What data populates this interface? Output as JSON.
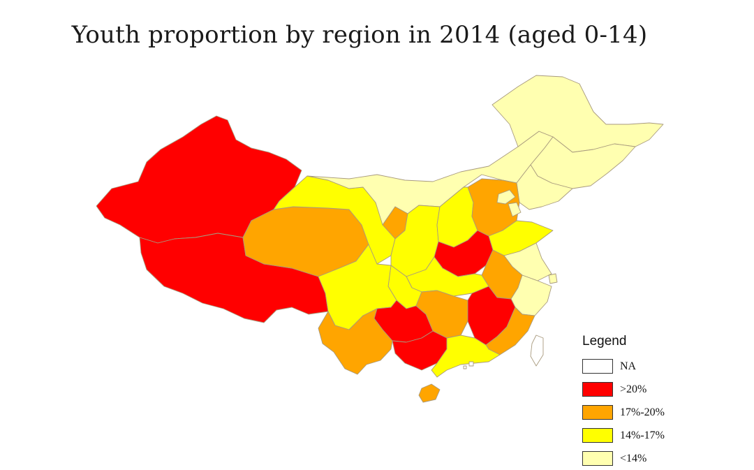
{
  "title": "Youth proportion by region in 2014 (aged 0-14)",
  "legend": {
    "title": "Legend",
    "items": [
      {
        "label": "NA",
        "color": "#ffffff"
      },
      {
        "label": ">20%",
        "color": "#ff0000"
      },
      {
        "label": "17%-20%",
        "color": "#ffa500"
      },
      {
        "label": "14%-17%",
        "color": "#ffff00"
      },
      {
        "label": "<14%",
        "color": "#ffffb0"
      }
    ]
  },
  "regions": [
    {
      "name": "Xinjiang",
      "class": ">20%"
    },
    {
      "name": "Tibet",
      "class": ">20%"
    },
    {
      "name": "Qinghai",
      "class": "17%-20%"
    },
    {
      "name": "Gansu",
      "class": "14%-17%"
    },
    {
      "name": "Inner Mongolia",
      "class": "<14%"
    },
    {
      "name": "Heilongjiang",
      "class": "<14%"
    },
    {
      "name": "Jilin",
      "class": "<14%"
    },
    {
      "name": "Liaoning",
      "class": "<14%"
    },
    {
      "name": "Ningxia",
      "class": "17%-20%"
    },
    {
      "name": "Shaanxi",
      "class": "14%-17%"
    },
    {
      "name": "Shanxi",
      "class": "14%-17%"
    },
    {
      "name": "Hebei",
      "class": "17%-20%"
    },
    {
      "name": "Beijing",
      "class": "<14%"
    },
    {
      "name": "Tianjin",
      "class": "<14%"
    },
    {
      "name": "Shandong",
      "class": "14%-17%"
    },
    {
      "name": "Henan",
      "class": ">20%"
    },
    {
      "name": "Jiangsu",
      "class": "<14%"
    },
    {
      "name": "Anhui",
      "class": "17%-20%"
    },
    {
      "name": "Shanghai",
      "class": "<14%"
    },
    {
      "name": "Zhejiang",
      "class": "<14%"
    },
    {
      "name": "Hubei",
      "class": "14%-17%"
    },
    {
      "name": "Chongqing",
      "class": "14%-17%"
    },
    {
      "name": "Sichuan",
      "class": "14%-17%"
    },
    {
      "name": "Hunan",
      "class": "17%-20%"
    },
    {
      "name": "Jiangxi",
      "class": ">20%"
    },
    {
      "name": "Fujian",
      "class": "17%-20%"
    },
    {
      "name": "Guizhou",
      "class": ">20%"
    },
    {
      "name": "Yunnan",
      "class": "17%-20%"
    },
    {
      "name": "Guangxi",
      "class": ">20%"
    },
    {
      "name": "Guangdong",
      "class": "14%-17%"
    },
    {
      "name": "Hainan",
      "class": "17%-20%"
    },
    {
      "name": "Taiwan",
      "class": "NA"
    },
    {
      "name": "Hong Kong",
      "class": "NA"
    },
    {
      "name": "Macau",
      "class": "NA"
    }
  ]
}
